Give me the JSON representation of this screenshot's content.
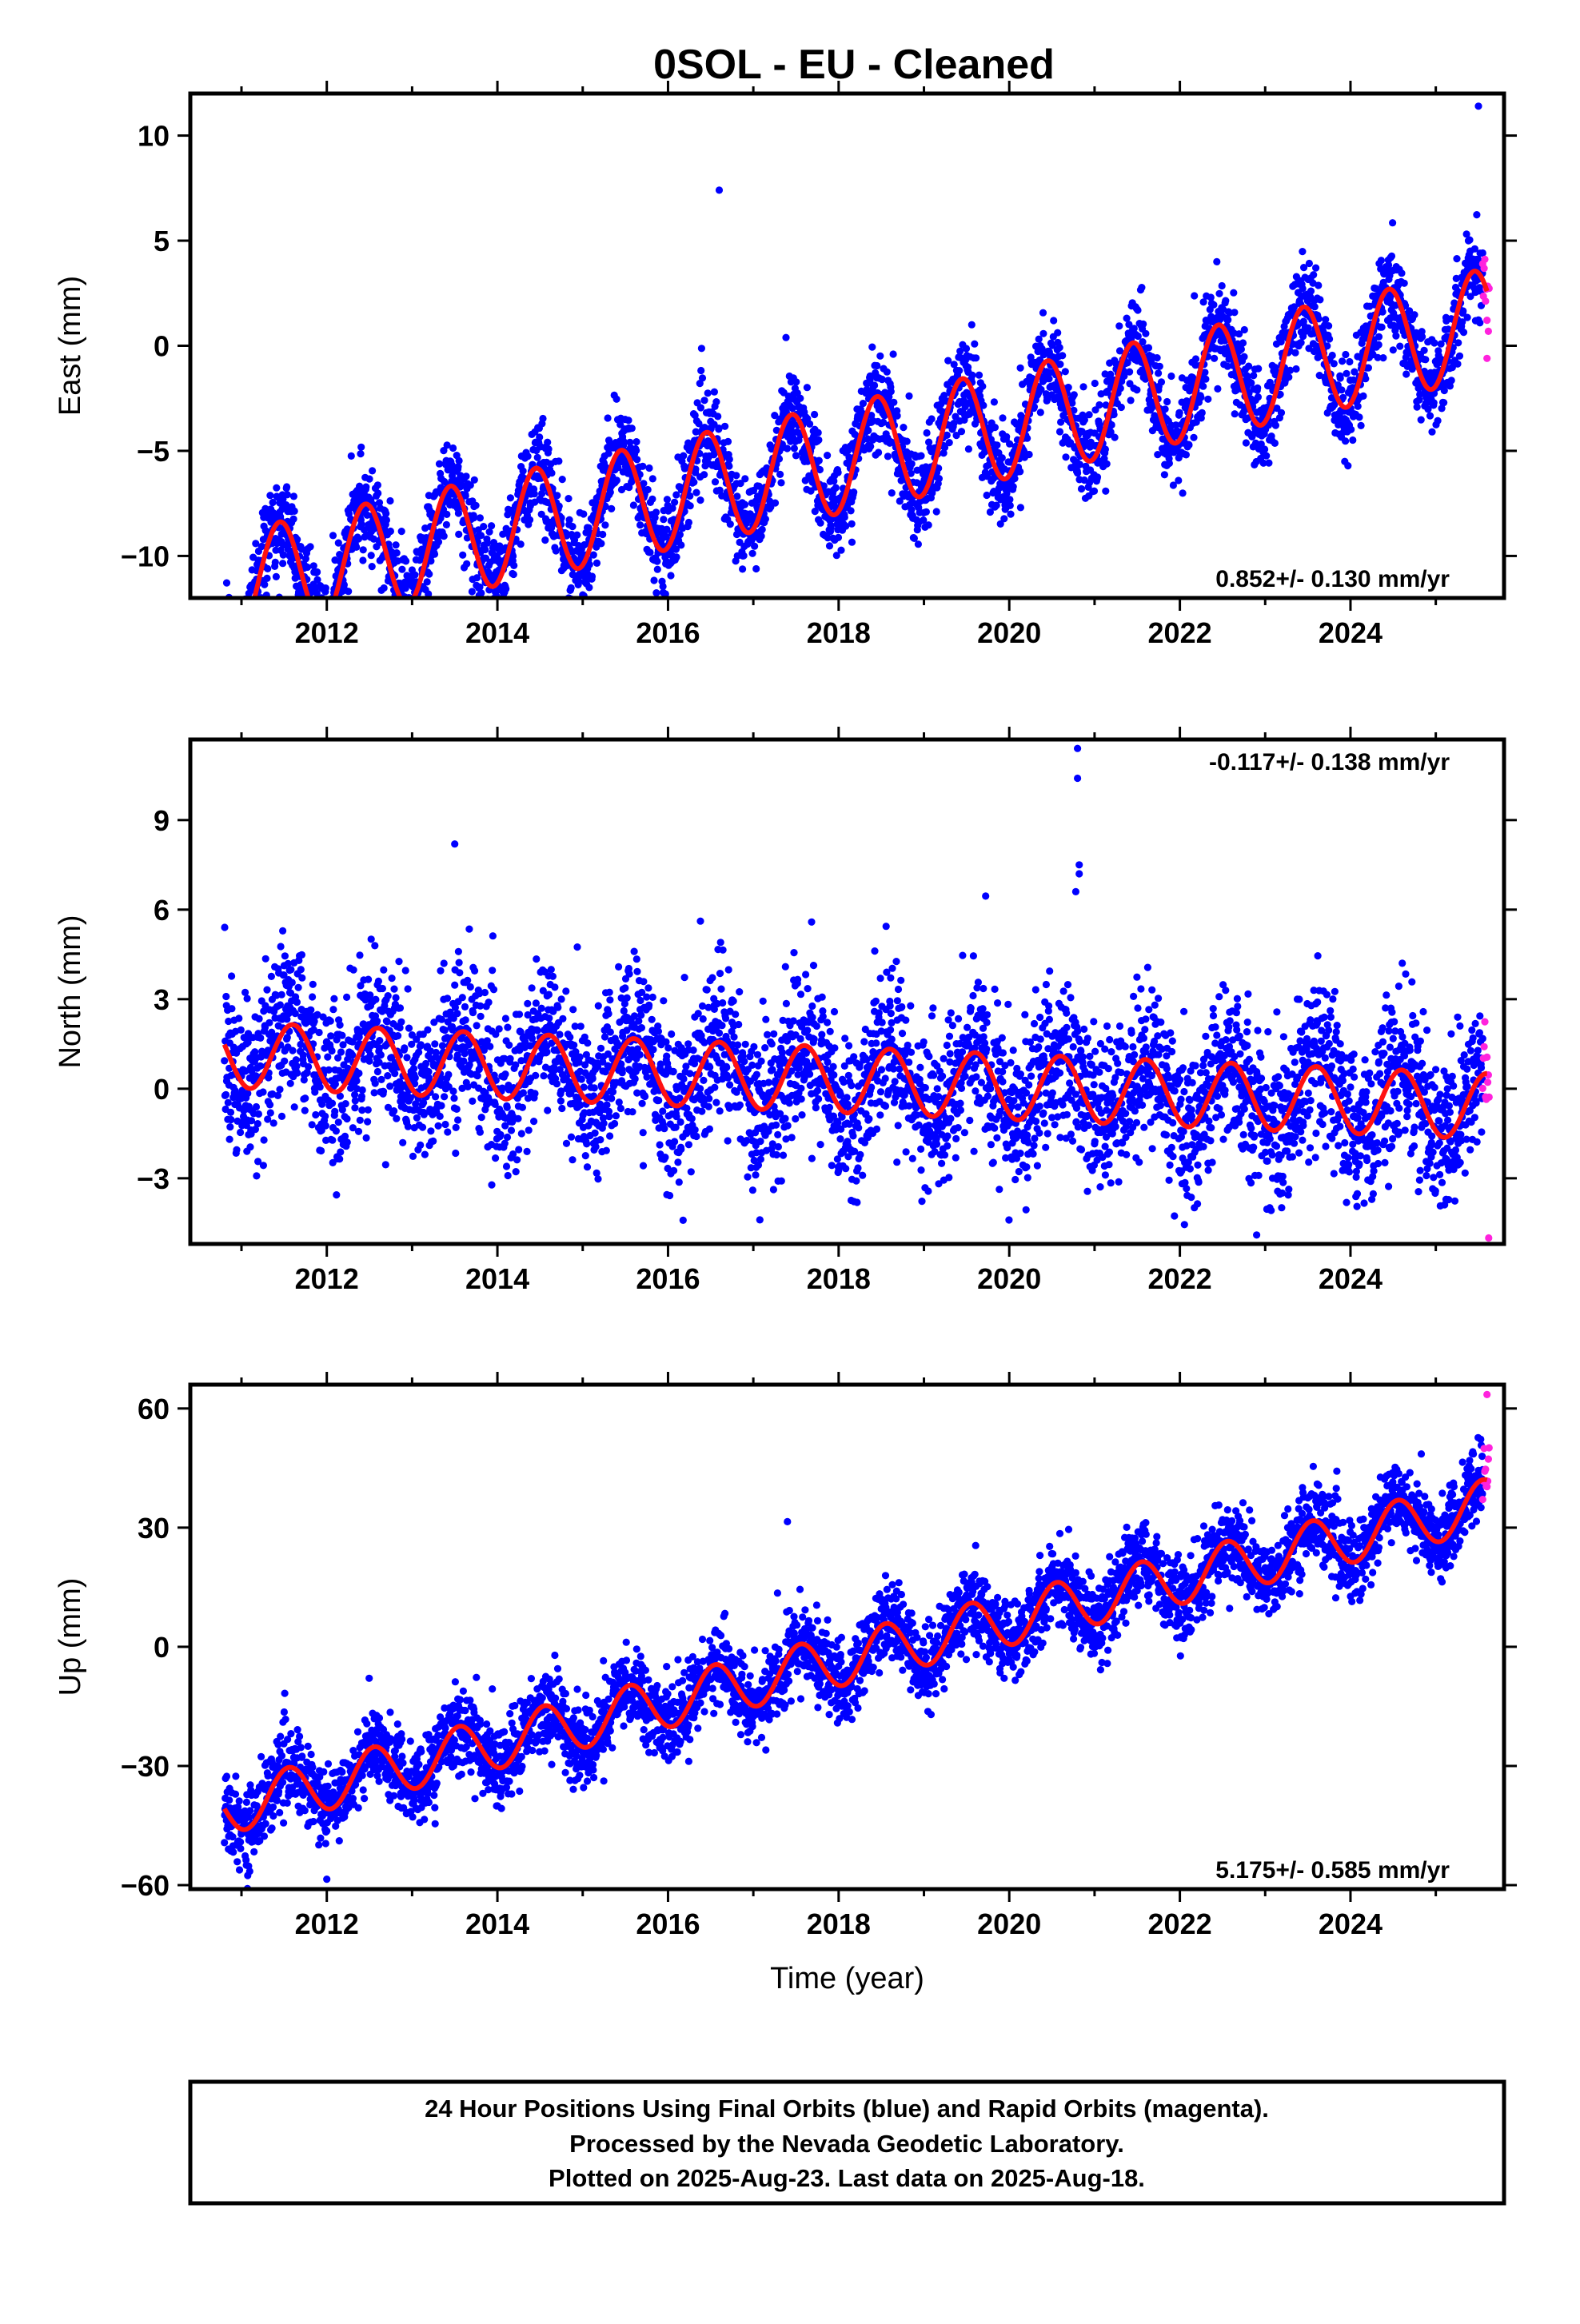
{
  "title": "0SOL  - EU - Cleaned",
  "colors": {
    "final": "#0000ff",
    "rapid": "#ff22dd",
    "model": "#ff1111",
    "axis": "#000000"
  },
  "footer": {
    "line1": "24 Hour Positions Using Final Orbits (blue) and Rapid Orbits (magenta).",
    "line2": "Processed by the Nevada Geodetic Laboratory.",
    "line3": "Plotted on 2025-Aug-23. Last data on 2025-Aug-18."
  },
  "chart_data": [
    {
      "type": "scatter",
      "component": "east",
      "ylabel": "East (mm)",
      "xlabel": "",
      "xlim": [
        2010.4,
        2025.8
      ],
      "ylim": [
        -12,
        12
      ],
      "yticks": [
        -10,
        -5,
        0,
        5,
        10
      ],
      "ytick_labels": [
        "−10",
        "−5",
        "0",
        "5",
        "10"
      ],
      "xticks": [
        2012,
        2014,
        2016,
        2018,
        2020,
        2022,
        2024
      ],
      "xtick_labels": [
        "2012",
        "2014",
        "2016",
        "2018",
        "2020",
        "2022",
        "2024"
      ],
      "rate_label": "0.852+/- 0.130 mm/yr",
      "rate_position": "bottom-right",
      "model": {
        "start": 2010.8,
        "end": 2025.6,
        "offset": -5.4,
        "trend": 0.852,
        "amplitude": 2.6,
        "peak": 0.45
      },
      "scatter_sd": 1.1,
      "series": [
        {
          "name": "Final Orbits (blue)",
          "color": "#0000ff",
          "x_start": 2010.8,
          "x_end": 2025.55
        },
        {
          "name": "Rapid Orbits (magenta)",
          "color": "#ff22dd",
          "x_start": 2025.55,
          "x_end": 2025.63
        }
      ],
      "outliers": [
        [
          2016.6,
          7.4
        ],
        [
          2025.5,
          11.4
        ],
        [
          2011.85,
          -11.6
        ],
        [
          2025.6,
          -0.6
        ]
      ]
    },
    {
      "type": "scatter",
      "component": "north",
      "ylabel": "North (mm)",
      "xlabel": "",
      "xlim": [
        2010.4,
        2025.8
      ],
      "ylim": [
        -5.2,
        11.7
      ],
      "yticks": [
        -3,
        0,
        3,
        6,
        9
      ],
      "ytick_labels": [
        "−3",
        "0",
        "3",
        "6",
        "9"
      ],
      "xticks": [
        2012,
        2014,
        2016,
        2018,
        2020,
        2022,
        2024
      ],
      "xtick_labels": [
        "2012",
        "2014",
        "2016",
        "2018",
        "2020",
        "2022",
        "2024"
      ],
      "rate_label": "-0.117+/- 0.138 mm/yr",
      "rate_position": "top-right",
      "model": {
        "start": 2010.8,
        "end": 2025.6,
        "offset": 0.3,
        "trend": -0.117,
        "amplitude": 1.1,
        "peak": 0.6
      },
      "scatter_sd": 1.3,
      "series": [
        {
          "name": "Final Orbits (blue)",
          "color": "#0000ff",
          "x_start": 2010.8,
          "x_end": 2025.55
        },
        {
          "name": "Rapid Orbits (magenta)",
          "color": "#ff22dd",
          "x_start": 2025.55,
          "x_end": 2025.63
        }
      ],
      "outliers": [
        [
          2013.5,
          8.2
        ],
        [
          2020.8,
          11.4
        ],
        [
          2020.8,
          10.4
        ],
        [
          2020.82,
          7.5
        ],
        [
          2020.82,
          7.2
        ],
        [
          2020.78,
          6.6
        ],
        [
          2022.9,
          -4.9
        ],
        [
          2025.62,
          -5.0
        ]
      ]
    },
    {
      "type": "scatter",
      "component": "up",
      "ylabel": "Up (mm)",
      "xlabel": "Time (year)",
      "xlim": [
        2010.4,
        2025.8
      ],
      "ylim": [
        -61,
        66
      ],
      "yticks": [
        -60,
        -30,
        0,
        30,
        60
      ],
      "ytick_labels": [
        "−60",
        "−30",
        "0",
        "30",
        "60"
      ],
      "xticks": [
        2012,
        2014,
        2016,
        2018,
        2020,
        2022,
        2024
      ],
      "xtick_labels": [
        "2012",
        "2014",
        "2016",
        "2018",
        "2020",
        "2022",
        "2024"
      ],
      "rate_label": "5.175+/- 0.585 mm/yr",
      "rate_position": "bottom-right",
      "model": {
        "start": 2010.8,
        "end": 2025.6,
        "offset": -3.5,
        "trend": 5.175,
        "amplitude": 6.5,
        "peak": 0.55
      },
      "scatter_sd": 5.0,
      "series": [
        {
          "name": "Final Orbits (blue)",
          "color": "#0000ff",
          "x_start": 2010.8,
          "x_end": 2025.55
        },
        {
          "name": "Rapid Orbits (magenta)",
          "color": "#ff22dd",
          "x_start": 2025.55,
          "x_end": 2025.63
        }
      ],
      "outliers": [
        [
          2017.4,
          31.5
        ],
        [
          2012.0,
          -58.5
        ],
        [
          2025.6,
          63.5
        ]
      ]
    }
  ]
}
